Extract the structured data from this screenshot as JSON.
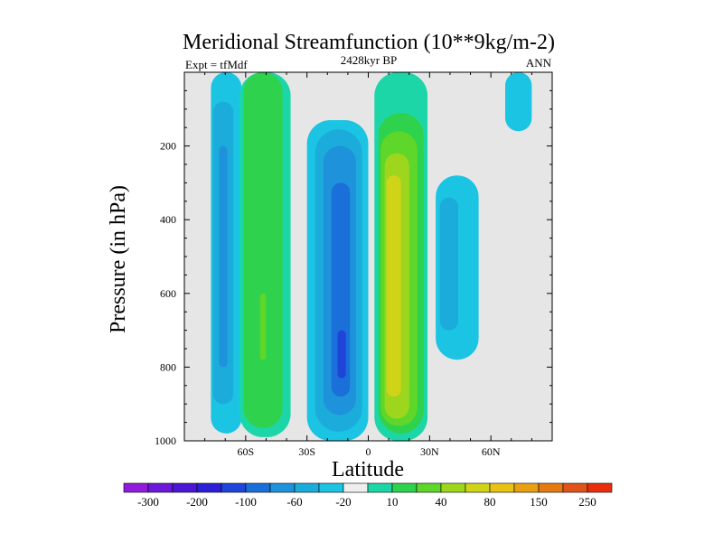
{
  "chart_data": {
    "type": "contour",
    "title": "Meridional Streamfunction (10**9kg/m-2)",
    "subtitle_left": "Expt = tfMdf",
    "subtitle_center": "2428kyr BP",
    "subtitle_right": "ANN",
    "xlabel": "Latitude",
    "ylabel": "Pressure (in hPa)",
    "xlim": [
      -90,
      90
    ],
    "ylim": [
      1000,
      0
    ],
    "y_reversed": true,
    "x_ticks": [
      {
        "value": -60,
        "label": "60S"
      },
      {
        "value": -30,
        "label": "30S"
      },
      {
        "value": 0,
        "label": "0"
      },
      {
        "value": 30,
        "label": "30N"
      },
      {
        "value": 60,
        "label": "60N"
      }
    ],
    "y_ticks": [
      {
        "value": 200,
        "label": "200"
      },
      {
        "value": 400,
        "label": "400"
      },
      {
        "value": 600,
        "label": "600"
      },
      {
        "value": 800,
        "label": "800"
      },
      {
        "value": 1000,
        "label": "1000"
      }
    ],
    "missing_color": "#e6e6e6",
    "colorbar": {
      "colors": [
        "#8f1bdc",
        "#6b18d8",
        "#4a17d6",
        "#2c1fd6",
        "#1e44d8",
        "#1a6fd8",
        "#1e92da",
        "#1cacdc",
        "#1bc4e2",
        "#eeeeee",
        "#1dd6a8",
        "#2fd24c",
        "#5ed62a",
        "#9ed61e",
        "#d0d418",
        "#e8c214",
        "#e8a012",
        "#e67a12",
        "#e0541a",
        "#e83010"
      ],
      "labels": [
        {
          "after_index": 1,
          "text": "-300"
        },
        {
          "after_index": 3,
          "text": "-200"
        },
        {
          "after_index": 5,
          "text": "-100"
        },
        {
          "after_index": 7,
          "text": "-60"
        },
        {
          "after_index": 9,
          "text": "-20"
        },
        {
          "after_index": 11,
          "text": "10"
        },
        {
          "after_index": 13,
          "text": "40"
        },
        {
          "after_index": 15,
          "text": "80"
        },
        {
          "after_index": 17,
          "text": "150"
        },
        {
          "after_index": 19,
          "text": "250"
        }
      ]
    },
    "cells": [
      {
        "name": "cell-sh-polar-direct",
        "band": -20,
        "color": "#1bc4e2",
        "lat": [
          -77,
          -62
        ],
        "p": [
          0,
          980
        ]
      },
      {
        "name": "cell-sh-polar-direct",
        "band": -60,
        "color": "#1cacdc",
        "lat": [
          -76,
          -66
        ],
        "p": [
          80,
          900
        ]
      },
      {
        "name": "cell-sh-polar-direct",
        "band": -100,
        "color": "#1e92da",
        "lat": [
          -73,
          -69
        ],
        "p": [
          200,
          800
        ]
      },
      {
        "name": "cell-sh-ferrel",
        "band": 10,
        "color": "#1dd6a8",
        "lat": [
          -63,
          -38
        ],
        "p": [
          0,
          990
        ]
      },
      {
        "name": "cell-sh-ferrel",
        "band": 40,
        "color": "#2fd24c",
        "lat": [
          -61,
          -42
        ],
        "p": [
          0,
          965
        ]
      },
      {
        "name": "cell-sh-ferrel",
        "band": 80,
        "color": "#5ed62a",
        "lat": [
          -53,
          -50
        ],
        "p": [
          600,
          780
        ]
      },
      {
        "name": "cell-sh-hadley",
        "band": -20,
        "color": "#1bc4e2",
        "lat": [
          -30,
          0
        ],
        "p": [
          130,
          1000
        ]
      },
      {
        "name": "cell-sh-hadley",
        "band": -60,
        "color": "#1cacdc",
        "lat": [
          -26,
          -3
        ],
        "p": [
          155,
          975
        ]
      },
      {
        "name": "cell-sh-hadley",
        "band": -100,
        "color": "#1e92da",
        "lat": [
          -22,
          -6
        ],
        "p": [
          200,
          930
        ]
      },
      {
        "name": "cell-sh-hadley",
        "band": -150,
        "color": "#1a6fd8",
        "lat": [
          -18,
          -9
        ],
        "p": [
          300,
          880
        ]
      },
      {
        "name": "cell-sh-hadley",
        "band": -200,
        "color": "#1e44d8",
        "lat": [
          -15,
          -11
        ],
        "p": [
          700,
          830
        ]
      },
      {
        "name": "cell-nh-hadley",
        "band": 10,
        "color": "#1dd6a8",
        "lat": [
          3,
          29
        ],
        "p": [
          0,
          1000
        ]
      },
      {
        "name": "cell-nh-hadley",
        "band": 40,
        "color": "#2fd24c",
        "lat": [
          5,
          27
        ],
        "p": [
          110,
          980
        ]
      },
      {
        "name": "cell-nh-hadley",
        "band": 80,
        "color": "#5ed62a",
        "lat": [
          6,
          24
        ],
        "p": [
          160,
          960
        ]
      },
      {
        "name": "cell-nh-hadley",
        "band": 150,
        "color": "#9ed61e",
        "lat": [
          8,
          20
        ],
        "p": [
          220,
          940
        ]
      },
      {
        "name": "cell-nh-hadley",
        "band": 250,
        "color": "#d0d418",
        "lat": [
          9,
          16
        ],
        "p": [
          280,
          880
        ]
      },
      {
        "name": "cell-nh-ferrel",
        "band": -20,
        "color": "#1bc4e2",
        "lat": [
          33,
          54
        ],
        "p": [
          280,
          780
        ]
      },
      {
        "name": "cell-nh-ferrel",
        "band": -60,
        "color": "#1cacdc",
        "lat": [
          35,
          44
        ],
        "p": [
          340,
          700
        ]
      },
      {
        "name": "cell-nh-polar",
        "band": -20,
        "color": "#1bc4e2",
        "lat": [
          67,
          80
        ],
        "p": [
          0,
          160
        ]
      }
    ]
  }
}
